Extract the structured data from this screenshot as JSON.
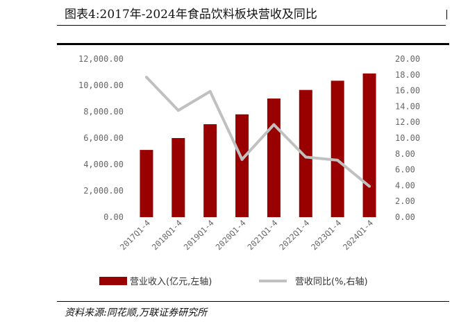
{
  "title": "图表4:2017年-2024年食品饮料板块营收及同比",
  "source": "资料来源:同花顺,万联证券研究所",
  "colors": {
    "bar": "#990000",
    "line": "#c0c0c0"
  },
  "chart_data": {
    "type": "bar",
    "categories": [
      "2017Q1-4",
      "2018Q1-4",
      "2019Q1-4",
      "2020Q1-4",
      "2021Q1-4",
      "2022Q1-4",
      "2023Q1-4",
      "2024Q1-4"
    ],
    "series": [
      {
        "name": "营业收入(亿元,左轴)",
        "type": "bar",
        "axis": "left",
        "values": [
          5100,
          6000,
          7050,
          7800,
          9000,
          9650,
          10350,
          10900
        ]
      },
      {
        "name": "营收同比(%,右轴)",
        "type": "line",
        "axis": "right",
        "values": [
          17.7,
          13.5,
          15.9,
          7.3,
          11.7,
          7.6,
          7.2,
          3.9
        ]
      }
    ],
    "y_left": {
      "min": 0,
      "max": 12000,
      "ticks": [
        "0.00",
        "2,000.00",
        "4,000.00",
        "6,000.00",
        "8,000.00",
        "10,000.00",
        "12,000.00"
      ]
    },
    "y_right": {
      "min": 0,
      "max": 20,
      "ticks": [
        "0.00",
        "2.00",
        "4.00",
        "6.00",
        "8.00",
        "10.00",
        "12.00",
        "14.00",
        "16.00",
        "18.00",
        "20.00"
      ]
    },
    "grid": false,
    "legend_position": "bottom"
  }
}
